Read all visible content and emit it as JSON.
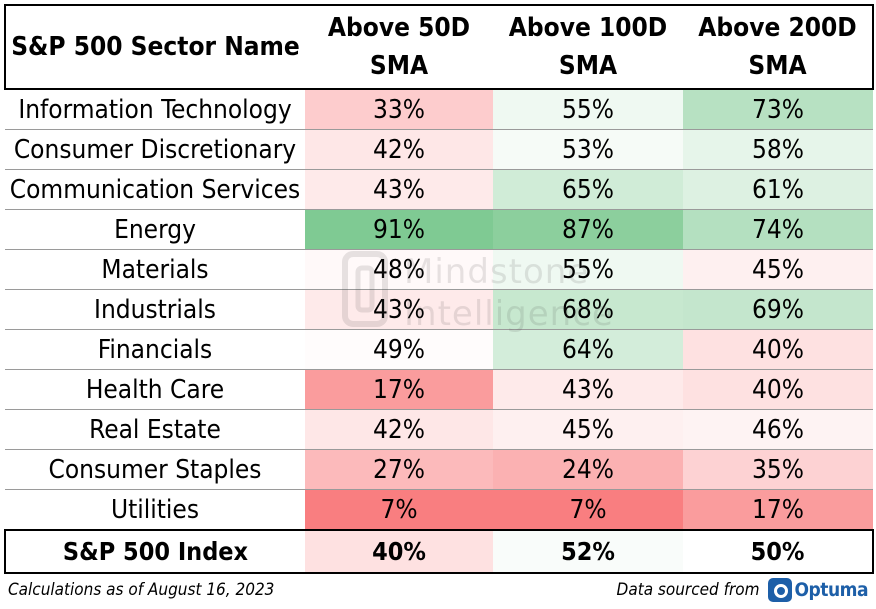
{
  "chart_data": {
    "type": "table",
    "columns": [
      "S&P 500 Sector Name",
      "Above 50D SMA",
      "Above 100D SMA",
      "Above 200D SMA"
    ],
    "column_headers": [
      {
        "line1": "S&P 500 Sector Name",
        "line2": ""
      },
      {
        "line1": "Above 50D",
        "line2": "SMA"
      },
      {
        "line1": "Above 100D",
        "line2": "SMA"
      },
      {
        "line1": "Above 200D",
        "line2": "SMA"
      }
    ],
    "rows": [
      {
        "sector": "Information Technology",
        "values": [
          33,
          55,
          73
        ]
      },
      {
        "sector": "Consumer Discretionary",
        "values": [
          42,
          53,
          58
        ]
      },
      {
        "sector": "Communication Services",
        "values": [
          43,
          65,
          61
        ]
      },
      {
        "sector": "Energy",
        "values": [
          91,
          87,
          74
        ]
      },
      {
        "sector": "Materials",
        "values": [
          48,
          55,
          45
        ]
      },
      {
        "sector": "Industrials",
        "values": [
          43,
          68,
          69
        ]
      },
      {
        "sector": "Financials",
        "values": [
          49,
          64,
          40
        ]
      },
      {
        "sector": "Health Care",
        "values": [
          17,
          43,
          40
        ]
      },
      {
        "sector": "Real Estate",
        "values": [
          42,
          45,
          46
        ]
      },
      {
        "sector": "Consumer Staples",
        "values": [
          27,
          24,
          35
        ]
      },
      {
        "sector": "Utilities",
        "values": [
          7,
          7,
          17
        ]
      }
    ],
    "total_row": {
      "sector": "S&P 500 Index",
      "values": [
        40,
        52,
        50
      ]
    },
    "value_suffix": "%",
    "color_scale": {
      "low": "#f8696b",
      "mid": "#ffffff",
      "high": "#63be7b",
      "midpoint": 50
    }
  },
  "footer": {
    "note": "Calculations as of August 16, 2023",
    "source_label": "Data sourced from",
    "source_logo": "Optuma"
  },
  "watermark": {
    "line1": "Mindstone",
    "line2": "Intelligence"
  }
}
